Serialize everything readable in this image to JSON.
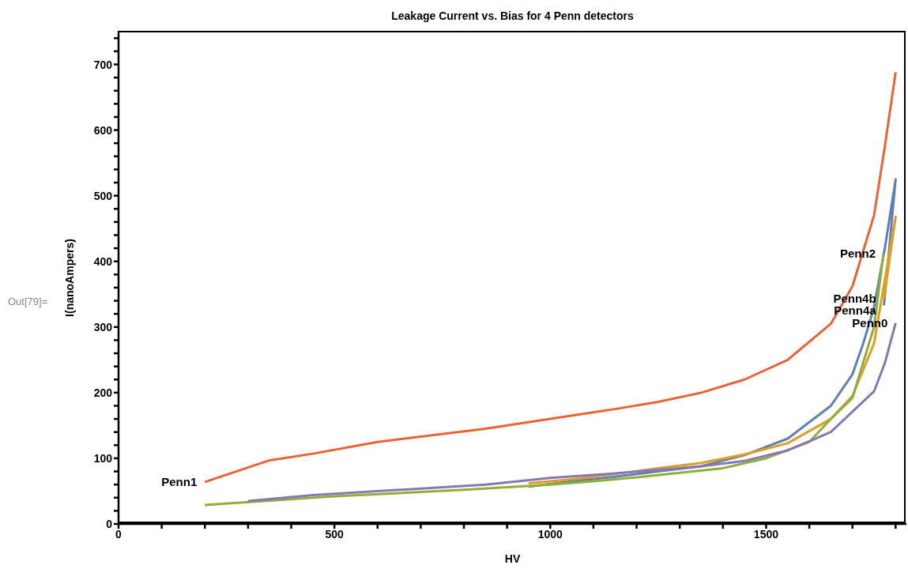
{
  "chart_data": {
    "type": "line",
    "title": "Leakage Current vs. Bias for 4 Penn detectors",
    "xlabel": "HV",
    "ylabel": "I(nanoAmpers)",
    "annotations": [
      "Out[79]="
    ],
    "xlim": [
      0,
      1825
    ],
    "ylim": [
      0,
      750
    ],
    "xticks": [
      0,
      {
        "value": 100,
        "label": null
      },
      {
        "value": 200,
        "label": null
      },
      {
        "value": 300,
        "label": null
      },
      {
        "value": 400,
        "label": null
      },
      500,
      {
        "value": 600,
        "label": null
      },
      {
        "value": 700,
        "label": null
      },
      {
        "value": 800,
        "label": null
      },
      {
        "value": 900,
        "label": null
      },
      1000,
      {
        "value": 1100,
        "label": null
      },
      {
        "value": 1200,
        "label": null
      },
      {
        "value": 1300,
        "label": null
      },
      {
        "value": 1400,
        "label": null
      },
      1500,
      {
        "value": 1600,
        "label": null
      },
      {
        "value": 1700,
        "label": null
      },
      {
        "value": 1800,
        "label": null
      }
    ],
    "yticks": [
      0,
      {
        "value": 20,
        "label": null
      },
      {
        "value": 40,
        "label": null
      },
      {
        "value": 60,
        "label": null
      },
      {
        "value": 80,
        "label": null
      },
      100,
      {
        "value": 120,
        "label": null
      },
      {
        "value": 140,
        "label": null
      },
      {
        "value": 160,
        "label": null
      },
      {
        "value": 180,
        "label": null
      },
      200,
      {
        "value": 220,
        "label": null
      },
      {
        "value": 240,
        "label": null
      },
      {
        "value": 260,
        "label": null
      },
      {
        "value": 280,
        "label": null
      },
      300,
      {
        "value": 320,
        "label": null
      },
      {
        "value": 340,
        "label": null
      },
      {
        "value": 360,
        "label": null
      },
      {
        "value": 380,
        "label": null
      },
      400,
      {
        "value": 420,
        "label": null
      },
      {
        "value": 440,
        "label": null
      },
      {
        "value": 460,
        "label": null
      },
      {
        "value": 480,
        "label": null
      },
      500,
      {
        "value": 520,
        "label": null
      },
      {
        "value": 540,
        "label": null
      },
      {
        "value": 560,
        "label": null
      },
      {
        "value": 580,
        "label": null
      },
      600,
      {
        "value": 620,
        "label": null
      },
      {
        "value": 640,
        "label": null
      },
      {
        "value": 660,
        "label": null
      },
      {
        "value": 680,
        "label": null
      },
      700,
      {
        "value": 720,
        "label": null
      },
      {
        "value": 740,
        "label": null
      }
    ],
    "grid": false,
    "legend": false,
    "line_style": "solid",
    "series": [
      {
        "name": "Penn4a",
        "color": "#5e81b5",
        "x": [
          950,
          1050,
          1150,
          1250,
          1350,
          1450,
          1550,
          1650,
          1700,
          1725,
          1750,
          1775,
          1800,
          1773
        ],
        "values": [
          57,
          65,
          72,
          80,
          88,
          105,
          130,
          180,
          228,
          275,
          330,
          420,
          525,
          333
        ]
      },
      {
        "name": "Penn4b",
        "color": "#e19c24",
        "x": [
          950,
          1050,
          1150,
          1250,
          1350,
          1450,
          1550,
          1650,
          1700,
          1750,
          1800,
          1773
        ],
        "values": [
          62,
          68,
          76,
          85,
          93,
          106,
          123,
          160,
          195,
          275,
          468,
          343
        ]
      },
      {
        "name": "Penn2",
        "color": "#8fb032",
        "x": [
          200,
          500,
          800,
          1000,
          1100,
          1200,
          1300,
          1400,
          1500,
          1600,
          1650,
          1700,
          1750,
          1772
        ],
        "values": [
          29,
          42,
          52,
          60,
          65,
          71,
          78,
          85,
          100,
          125,
          160,
          192,
          300,
          412
        ]
      },
      {
        "name": "Penn1",
        "color": "#eb6235",
        "x": [
          200,
          350,
          450,
          600,
          850,
          1000,
          1150,
          1250,
          1350,
          1450,
          1550,
          1650,
          1700,
          1750,
          1775,
          1800
        ],
        "values": [
          64,
          97,
          107,
          125,
          145,
          160,
          175,
          186,
          200,
          220,
          250,
          305,
          362,
          470,
          575,
          688
        ]
      },
      {
        "name": "Penn0",
        "color": "#8778b3",
        "x": [
          300,
          450,
          850,
          1000,
          1150,
          1350,
          1450,
          1550,
          1650,
          1750,
          1775,
          1800
        ],
        "values": [
          35,
          44,
          60,
          70,
          77,
          88,
          96,
          112,
          140,
          202,
          245,
          306
        ]
      }
    ]
  }
}
